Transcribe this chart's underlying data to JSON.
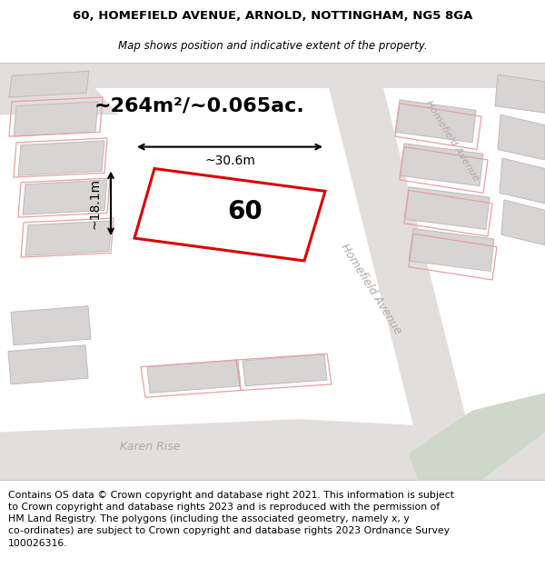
{
  "title_line1": "60, HOMEFIELD AVENUE, ARNOLD, NOTTINGHAM, NG5 8GA",
  "title_line2": "Map shows position and indicative extent of the property.",
  "area_text": "~264m²/~0.065ac.",
  "width_label": "~30.6m",
  "height_label": "~18.1m",
  "house_number": "60",
  "karen_rise_label": "Karen Rise",
  "homefield_label": "Homefield Avenue",
  "homefield_label2": "Homefield Avenue",
  "footer_text": "Contains OS data © Crown copyright and database right 2021. This information is subject\nto Crown copyright and database rights 2023 and is reproduced with the permission of\nHM Land Registry. The polygons (including the associated geometry, namely x, y\nco-ordinates) are subject to Crown copyright and database rights 2023 Ordnance Survey\n100026316.",
  "map_bg": "#f2f0f0",
  "road_bg": "#e8e4e4",
  "building_fill": "#d8d4d4",
  "building_edge": "#bfbbbb",
  "parcel_edge_light": "#e8a0a0",
  "parcel_fill_main": "#ffffff",
  "parcel_edge_main": "#dd0000",
  "green_patch": "#d8e8d0",
  "title_fontsize": 9.5,
  "subtitle_fontsize": 8.5,
  "footer_fontsize": 7.8,
  "area_fontsize": 16,
  "label_fontsize": 10,
  "street_fontsize": 9,
  "housenumber_fontsize": 20
}
